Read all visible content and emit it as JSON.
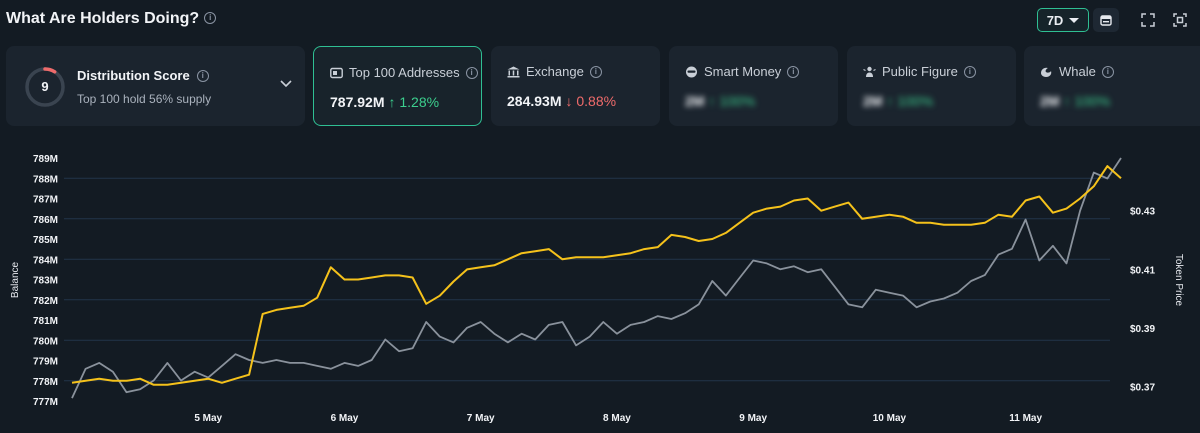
{
  "header": {
    "title": "What Are Holders Doing?",
    "period": "7D"
  },
  "distribution": {
    "score": "9",
    "title": "Distribution Score",
    "subtitle": "Top 100 hold 56% supply",
    "score_fraction": 0.09
  },
  "cards": [
    {
      "label": "Top 100 Addresses",
      "value": "787.92M",
      "change": "↑ 1.28%",
      "direction": "up",
      "icon": "wallet-icon",
      "active": true
    },
    {
      "label": "Exchange",
      "value": "284.93M",
      "change": "↓ 0.88%",
      "direction": "down",
      "icon": "bank-icon",
      "active": false
    },
    {
      "label": "Smart Money",
      "value": "2M",
      "change": "↑ 100%",
      "direction": "up",
      "icon": "smart-money-icon",
      "hidden": true
    },
    {
      "label": "Public Figure",
      "value": "2M",
      "change": "↑ 100%",
      "direction": "up",
      "icon": "public-figure-icon",
      "hidden": true
    },
    {
      "label": "Whale",
      "value": "2M",
      "change": "↑ 100%",
      "direction": "up",
      "icon": "whale-icon",
      "hidden": true
    }
  ],
  "colors": {
    "balance_line": "#f5c21b",
    "price_line": "#8a929c",
    "accent": "#2fbf93",
    "up": "#3ccf8e",
    "down": "#ef6b6b"
  },
  "chart_data": {
    "type": "line",
    "y_left_label": "Balance",
    "y_right_label": "Token Price",
    "y_left_ticks": [
      "789M",
      "788M",
      "787M",
      "786M",
      "785M",
      "784M",
      "783M",
      "782M",
      "781M",
      "780M",
      "779M",
      "778M",
      "777M"
    ],
    "y_right_ticks": [
      "$0.43",
      "$0.41",
      "$0.39",
      "$0.37"
    ],
    "x_ticks": [
      "5 May",
      "6 May",
      "7 May",
      "8 May",
      "9 May",
      "10 May",
      "11 May"
    ],
    "ylim_left": [
      777,
      789
    ],
    "ylim_right": [
      0.365,
      0.448
    ],
    "grid": true,
    "series": [
      {
        "name": "Balance",
        "axis": "left",
        "x": [
          4.0,
          4.1,
          4.2,
          4.3,
          4.4,
          4.5,
          4.6,
          4.7,
          4.8,
          4.9,
          5.0,
          5.1,
          5.2,
          5.3,
          5.4,
          5.5,
          5.6,
          5.7,
          5.8,
          5.9,
          6.0,
          6.1,
          6.2,
          6.3,
          6.4,
          6.5,
          6.6,
          6.7,
          6.8,
          6.9,
          7.0,
          7.1,
          7.2,
          7.3,
          7.4,
          7.5,
          7.6,
          7.7,
          7.8,
          7.9,
          8.0,
          8.1,
          8.2,
          8.3,
          8.4,
          8.5,
          8.6,
          8.7,
          8.8,
          8.9,
          9.0,
          9.1,
          9.2,
          9.3,
          9.4,
          9.5,
          9.6,
          9.7,
          9.8,
          9.9,
          10.0,
          10.1,
          10.2,
          10.3,
          10.4,
          10.5,
          10.6,
          10.7,
          10.8,
          10.9,
          11.0,
          11.1,
          11.2,
          11.3,
          11.4,
          11.5,
          11.6,
          11.7
        ],
        "y": [
          777.9,
          778.0,
          778.1,
          778.0,
          778.0,
          778.1,
          777.8,
          777.8,
          777.9,
          778.0,
          778.1,
          777.9,
          778.1,
          778.3,
          781.3,
          781.5,
          781.6,
          781.7,
          782.1,
          783.6,
          783.0,
          783.0,
          783.1,
          783.2,
          783.2,
          783.1,
          781.8,
          782.2,
          782.9,
          783.5,
          783.6,
          783.7,
          784.0,
          784.3,
          784.4,
          784.5,
          784.0,
          784.1,
          784.1,
          784.1,
          784.2,
          784.3,
          784.5,
          784.6,
          785.2,
          785.1,
          784.9,
          785.0,
          785.3,
          785.8,
          786.3,
          786.5,
          786.6,
          786.9,
          787.0,
          786.4,
          786.6,
          786.8,
          786.0,
          786.1,
          786.2,
          786.1,
          785.8,
          785.8,
          785.7,
          785.7,
          785.7,
          785.8,
          786.2,
          786.1,
          786.9,
          787.1,
          786.3,
          786.5,
          787.0,
          787.6,
          788.6,
          788.0
        ]
      },
      {
        "name": "Token Price",
        "axis": "right",
        "x": [
          4.0,
          4.1,
          4.2,
          4.3,
          4.4,
          4.5,
          4.6,
          4.7,
          4.8,
          4.9,
          5.0,
          5.1,
          5.2,
          5.3,
          5.4,
          5.5,
          5.6,
          5.7,
          5.8,
          5.9,
          6.0,
          6.1,
          6.2,
          6.3,
          6.4,
          6.5,
          6.6,
          6.7,
          6.8,
          6.9,
          7.0,
          7.1,
          7.2,
          7.3,
          7.4,
          7.5,
          7.6,
          7.7,
          7.8,
          7.9,
          8.0,
          8.1,
          8.2,
          8.3,
          8.4,
          8.5,
          8.6,
          8.7,
          8.8,
          8.9,
          9.0,
          9.1,
          9.2,
          9.3,
          9.4,
          9.5,
          9.6,
          9.7,
          9.8,
          9.9,
          10.0,
          10.1,
          10.2,
          10.3,
          10.4,
          10.5,
          10.6,
          10.7,
          10.8,
          10.9,
          11.0,
          11.1,
          11.2,
          11.3,
          11.4,
          11.5,
          11.6,
          11.7
        ],
        "y": [
          0.366,
          0.376,
          0.378,
          0.375,
          0.368,
          0.369,
          0.372,
          0.378,
          0.372,
          0.375,
          0.373,
          0.377,
          0.381,
          0.379,
          0.378,
          0.379,
          0.378,
          0.378,
          0.377,
          0.376,
          0.378,
          0.377,
          0.379,
          0.386,
          0.382,
          0.383,
          0.392,
          0.387,
          0.385,
          0.39,
          0.392,
          0.388,
          0.385,
          0.388,
          0.386,
          0.391,
          0.392,
          0.384,
          0.387,
          0.392,
          0.388,
          0.391,
          0.392,
          0.394,
          0.393,
          0.395,
          0.398,
          0.406,
          0.401,
          0.407,
          0.413,
          0.412,
          0.41,
          0.411,
          0.409,
          0.41,
          0.404,
          0.398,
          0.397,
          0.403,
          0.402,
          0.401,
          0.397,
          0.399,
          0.4,
          0.402,
          0.406,
          0.408,
          0.415,
          0.417,
          0.427,
          0.413,
          0.418,
          0.412,
          0.43,
          0.443,
          0.441,
          0.448
        ]
      }
    ]
  }
}
